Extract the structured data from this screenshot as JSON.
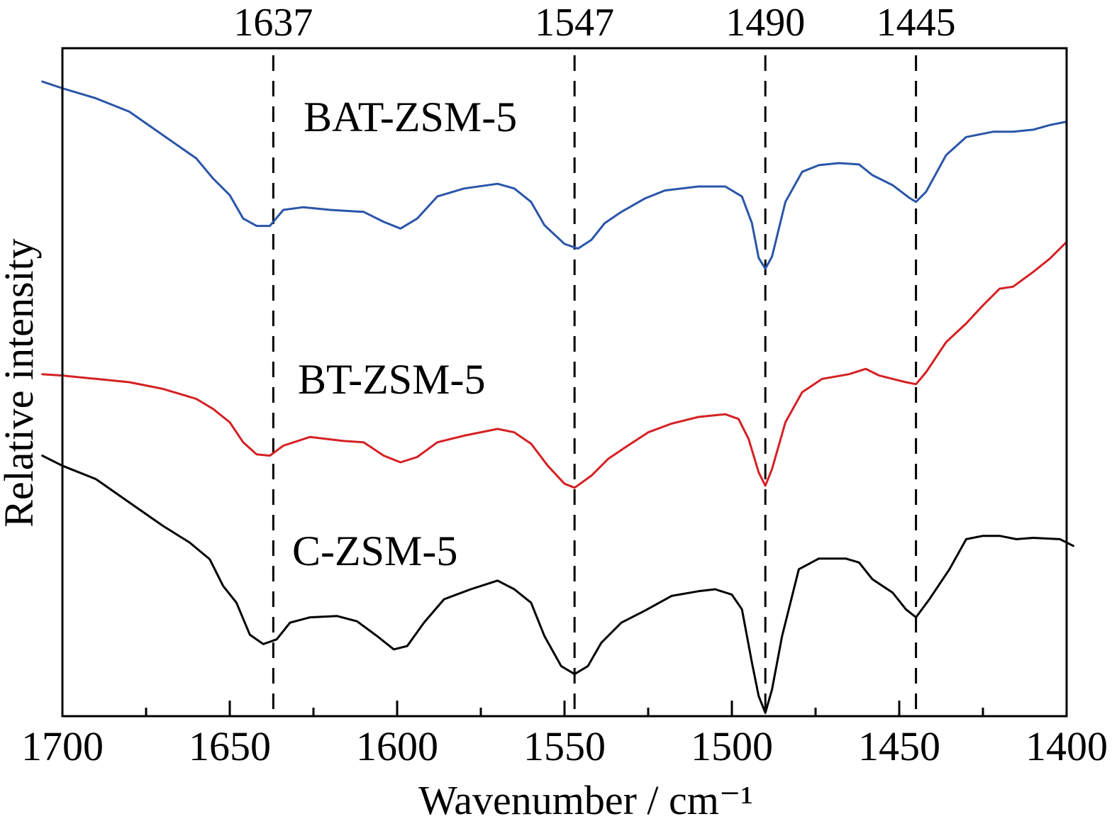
{
  "chart_data": {
    "type": "line",
    "title": "",
    "xlabel": "Wavenumber / cm⁻¹",
    "ylabel": "Relative intensity",
    "xlim": [
      1700,
      1400
    ],
    "x_reversed": true,
    "x_ticks": [
      "1700",
      "1650",
      "1600",
      "1550",
      "1500",
      "1450",
      "1400"
    ],
    "y_tick_labels": false,
    "grid": false,
    "reference_lines": [
      {
        "x": 1637,
        "label": "1637"
      },
      {
        "x": 1547,
        "label": "1547"
      },
      {
        "x": 1490,
        "label": "1490"
      },
      {
        "x": 1445,
        "label": "1445"
      }
    ],
    "series": [
      {
        "name": "BAT-ZSM-5",
        "color": "#2a55a8",
        "points": [
          [
            1706,
            0.95
          ],
          [
            1700,
            0.94
          ],
          [
            1690,
            0.925
          ],
          [
            1680,
            0.905
          ],
          [
            1670,
            0.87
          ],
          [
            1660,
            0.835
          ],
          [
            1655,
            0.805
          ],
          [
            1650,
            0.78
          ],
          [
            1646,
            0.745
          ],
          [
            1642,
            0.734
          ],
          [
            1638,
            0.734
          ],
          [
            1634,
            0.758
          ],
          [
            1628,
            0.762
          ],
          [
            1620,
            0.758
          ],
          [
            1610,
            0.755
          ],
          [
            1604,
            0.74
          ],
          [
            1599,
            0.73
          ],
          [
            1594,
            0.745
          ],
          [
            1588,
            0.778
          ],
          [
            1580,
            0.79
          ],
          [
            1570,
            0.797
          ],
          [
            1565,
            0.79
          ],
          [
            1560,
            0.77
          ],
          [
            1556,
            0.735
          ],
          [
            1550,
            0.707
          ],
          [
            1546,
            0.7
          ],
          [
            1542,
            0.713
          ],
          [
            1538,
            0.738
          ],
          [
            1533,
            0.755
          ],
          [
            1526,
            0.775
          ],
          [
            1520,
            0.787
          ],
          [
            1510,
            0.793
          ],
          [
            1502,
            0.793
          ],
          [
            1497,
            0.778
          ],
          [
            1494,
            0.738
          ],
          [
            1492,
            0.686
          ],
          [
            1490,
            0.67
          ],
          [
            1488,
            0.688
          ],
          [
            1484,
            0.77
          ],
          [
            1479,
            0.815
          ],
          [
            1474,
            0.825
          ],
          [
            1468,
            0.828
          ],
          [
            1462,
            0.826
          ],
          [
            1458,
            0.81
          ],
          [
            1452,
            0.795
          ],
          [
            1447,
            0.776
          ],
          [
            1445,
            0.77
          ],
          [
            1442,
            0.785
          ],
          [
            1436,
            0.84
          ],
          [
            1430,
            0.867
          ],
          [
            1422,
            0.875
          ],
          [
            1416,
            0.875
          ],
          [
            1410,
            0.878
          ],
          [
            1405,
            0.885
          ],
          [
            1400,
            0.89
          ]
        ]
      },
      {
        "name": "BT-ZSM-5",
        "color": "#d42024",
        "points": [
          [
            1706,
            0.512
          ],
          [
            1700,
            0.51
          ],
          [
            1690,
            0.505
          ],
          [
            1680,
            0.5
          ],
          [
            1670,
            0.49
          ],
          [
            1660,
            0.475
          ],
          [
            1655,
            0.46
          ],
          [
            1650,
            0.44
          ],
          [
            1646,
            0.41
          ],
          [
            1642,
            0.392
          ],
          [
            1638,
            0.39
          ],
          [
            1634,
            0.405
          ],
          [
            1626,
            0.418
          ],
          [
            1616,
            0.412
          ],
          [
            1610,
            0.41
          ],
          [
            1604,
            0.39
          ],
          [
            1599,
            0.38
          ],
          [
            1594,
            0.388
          ],
          [
            1588,
            0.41
          ],
          [
            1580,
            0.42
          ],
          [
            1570,
            0.43
          ],
          [
            1565,
            0.425
          ],
          [
            1560,
            0.408
          ],
          [
            1555,
            0.375
          ],
          [
            1550,
            0.348
          ],
          [
            1547,
            0.342
          ],
          [
            1542,
            0.36
          ],
          [
            1537,
            0.385
          ],
          [
            1532,
            0.402
          ],
          [
            1525,
            0.425
          ],
          [
            1518,
            0.438
          ],
          [
            1510,
            0.448
          ],
          [
            1502,
            0.452
          ],
          [
            1498,
            0.445
          ],
          [
            1495,
            0.415
          ],
          [
            1492,
            0.365
          ],
          [
            1490,
            0.345
          ],
          [
            1488,
            0.37
          ],
          [
            1484,
            0.44
          ],
          [
            1479,
            0.485
          ],
          [
            1473,
            0.505
          ],
          [
            1465,
            0.512
          ],
          [
            1460,
            0.52
          ],
          [
            1456,
            0.51
          ],
          [
            1452,
            0.505
          ],
          [
            1448,
            0.5
          ],
          [
            1445,
            0.497
          ],
          [
            1442,
            0.515
          ],
          [
            1436,
            0.56
          ],
          [
            1430,
            0.588
          ],
          [
            1425,
            0.615
          ],
          [
            1420,
            0.64
          ],
          [
            1416,
            0.643
          ],
          [
            1410,
            0.665
          ],
          [
            1405,
            0.685
          ],
          [
            1400,
            0.71
          ]
        ]
      },
      {
        "name": "C-ZSM-5",
        "color": "#000000",
        "points": [
          [
            1706,
            0.39
          ],
          [
            1700,
            0.375
          ],
          [
            1690,
            0.355
          ],
          [
            1680,
            0.32
          ],
          [
            1670,
            0.285
          ],
          [
            1662,
            0.26
          ],
          [
            1656,
            0.235
          ],
          [
            1652,
            0.195
          ],
          [
            1648,
            0.17
          ],
          [
            1644,
            0.122
          ],
          [
            1640,
            0.108
          ],
          [
            1636,
            0.115
          ],
          [
            1632,
            0.14
          ],
          [
            1626,
            0.148
          ],
          [
            1618,
            0.15
          ],
          [
            1612,
            0.142
          ],
          [
            1606,
            0.12
          ],
          [
            1601,
            0.1
          ],
          [
            1597,
            0.105
          ],
          [
            1592,
            0.14
          ],
          [
            1586,
            0.175
          ],
          [
            1578,
            0.19
          ],
          [
            1570,
            0.203
          ],
          [
            1565,
            0.19
          ],
          [
            1560,
            0.17
          ],
          [
            1556,
            0.12
          ],
          [
            1551,
            0.075
          ],
          [
            1547,
            0.063
          ],
          [
            1543,
            0.075
          ],
          [
            1539,
            0.11
          ],
          [
            1533,
            0.14
          ],
          [
            1526,
            0.158
          ],
          [
            1518,
            0.18
          ],
          [
            1510,
            0.187
          ],
          [
            1505,
            0.19
          ],
          [
            1500,
            0.182
          ],
          [
            1497,
            0.16
          ],
          [
            1494,
            0.08
          ],
          [
            1492,
            0.03
          ],
          [
            1490,
            0.005
          ],
          [
            1488,
            0.04
          ],
          [
            1485,
            0.12
          ],
          [
            1480,
            0.22
          ],
          [
            1474,
            0.236
          ],
          [
            1466,
            0.236
          ],
          [
            1462,
            0.23
          ],
          [
            1458,
            0.205
          ],
          [
            1452,
            0.185
          ],
          [
            1448,
            0.16
          ],
          [
            1445,
            0.148
          ],
          [
            1441,
            0.175
          ],
          [
            1435,
            0.22
          ],
          [
            1430,
            0.265
          ],
          [
            1425,
            0.27
          ],
          [
            1420,
            0.27
          ],
          [
            1415,
            0.265
          ],
          [
            1410,
            0.267
          ],
          [
            1402,
            0.265
          ],
          [
            1398,
            0.255
          ]
        ]
      }
    ]
  }
}
